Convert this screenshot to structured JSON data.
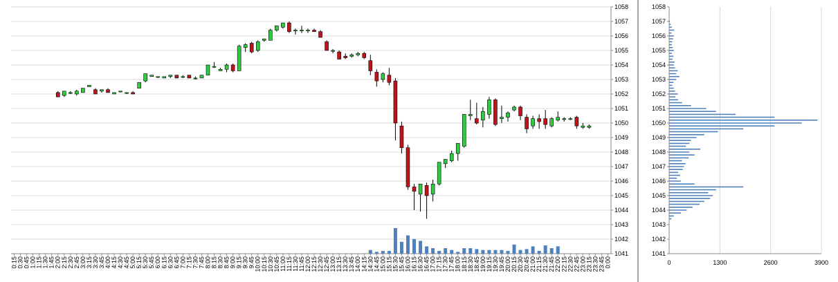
{
  "chart_data": [
    {
      "type": "candlestick",
      "name": "price",
      "ylim": [
        1041,
        1058
      ],
      "yticks": [
        1041,
        1042,
        1043,
        1044,
        1045,
        1046,
        1047,
        1048,
        1049,
        1050,
        1051,
        1052,
        1053,
        1054,
        1055,
        1056,
        1057,
        1058
      ],
      "grid": true,
      "x": [
        "0:15",
        "0:30",
        "0:45",
        "1:00",
        "1:15",
        "1:30",
        "1:45",
        "2:00",
        "2:15",
        "2:30",
        "2:45",
        "3:00",
        "3:15",
        "3:30",
        "3:45",
        "4:00",
        "4:15",
        "4:30",
        "4:45",
        "5:00",
        "5:15",
        "5:30",
        "5:45",
        "6:00",
        "6:15",
        "6:30",
        "6:45",
        "7:00",
        "7:15",
        "7:30",
        "7:45",
        "8:00",
        "8:15",
        "8:30",
        "8:45",
        "9:00",
        "9:15",
        "9:30",
        "9:45",
        "10:00",
        "10:15",
        "10:30",
        "10:45",
        "11:00",
        "11:15",
        "11:30",
        "11:45",
        "12:00",
        "12:15",
        "12:30",
        "12:45",
        "13:00",
        "13:15",
        "13:30",
        "13:45",
        "14:00",
        "14:15",
        "14:30",
        "14:45",
        "15:00",
        "15:15",
        "15:30",
        "15:45",
        "16:00",
        "16:15",
        "16:30",
        "16:45",
        "17:00",
        "17:15",
        "17:30",
        "17:45",
        "18:00",
        "18:15",
        "18:30",
        "18:45",
        "19:00",
        "19:15",
        "19:30",
        "19:45",
        "20:00",
        "20:15",
        "20:30",
        "20:45",
        "21:00",
        "21:15",
        "21:30",
        "21:45",
        "22:00",
        "22:15",
        "22:30",
        "22:45",
        "23:00",
        "23:15",
        "23:30",
        "23:45",
        "0:00"
      ],
      "candles": [
        {
          "x": "2:00",
          "o": 1052.1,
          "h": 1052.2,
          "l": 1051.8,
          "c": 1051.8
        },
        {
          "x": "2:15",
          "o": 1051.9,
          "h": 1052.1,
          "l": 1051.8,
          "c": 1052.2
        },
        {
          "x": "2:30",
          "o": 1052.1,
          "h": 1052.2,
          "l": 1052.0,
          "c": 1052.1
        },
        {
          "x": "2:45",
          "o": 1052.0,
          "h": 1052.3,
          "l": 1051.9,
          "c": 1052.2
        },
        {
          "x": "3:00",
          "o": 1052.1,
          "h": 1052.4,
          "l": 1052.1,
          "c": 1052.4
        },
        {
          "x": "3:15",
          "o": 1052.5,
          "h": 1052.6,
          "l": 1052.5,
          "c": 1052.6
        },
        {
          "x": "3:30",
          "o": 1052.3,
          "h": 1052.4,
          "l": 1052.1,
          "c": 1052.0
        },
        {
          "x": "3:45",
          "o": 1052.2,
          "h": 1052.3,
          "l": 1052.1,
          "c": 1052.3
        },
        {
          "x": "4:00",
          "o": 1052.3,
          "h": 1052.4,
          "l": 1052.2,
          "c": 1052.1
        },
        {
          "x": "4:15",
          "o": 1052.0,
          "h": 1052.1,
          "l": 1052.0,
          "c": 1052.1
        },
        {
          "x": "4:30",
          "o": 1052.2,
          "h": 1052.2,
          "l": 1052.1,
          "c": 1052.2
        },
        {
          "x": "4:45",
          "o": 1052.1,
          "h": 1052.1,
          "l": 1052.0,
          "c": 1052.1
        },
        {
          "x": "5:00",
          "o": 1052.1,
          "h": 1052.2,
          "l": 1052.0,
          "c": 1052.0
        },
        {
          "x": "5:15",
          "o": 1052.4,
          "h": 1052.8,
          "l": 1052.4,
          "c": 1052.8
        },
        {
          "x": "5:30",
          "o": 1052.9,
          "h": 1053.4,
          "l": 1052.8,
          "c": 1053.4
        },
        {
          "x": "5:45",
          "o": 1053.2,
          "h": 1053.3,
          "l": 1053.2,
          "c": 1053.3
        },
        {
          "x": "6:00",
          "o": 1053.2,
          "h": 1053.2,
          "l": 1053.1,
          "c": 1053.2
        },
        {
          "x": "6:15",
          "o": 1053.1,
          "h": 1053.2,
          "l": 1053.1,
          "c": 1053.2
        },
        {
          "x": "6:30",
          "o": 1053.2,
          "h": 1053.3,
          "l": 1053.1,
          "c": 1053.3
        },
        {
          "x": "6:45",
          "o": 1053.3,
          "h": 1053.3,
          "l": 1053.1,
          "c": 1053.1
        },
        {
          "x": "7:00",
          "o": 1053.2,
          "h": 1053.3,
          "l": 1053.1,
          "c": 1053.2
        },
        {
          "x": "7:15",
          "o": 1053.3,
          "h": 1053.3,
          "l": 1053.1,
          "c": 1053.1
        },
        {
          "x": "7:30",
          "o": 1053.1,
          "h": 1053.2,
          "l": 1053.0,
          "c": 1053.1
        },
        {
          "x": "7:45",
          "o": 1053.1,
          "h": 1053.3,
          "l": 1053.1,
          "c": 1053.3
        },
        {
          "x": "8:00",
          "o": 1053.3,
          "h": 1054.0,
          "l": 1053.3,
          "c": 1054.0
        },
        {
          "x": "8:15",
          "o": 1053.9,
          "h": 1054.2,
          "l": 1053.8,
          "c": 1053.9
        },
        {
          "x": "8:30",
          "o": 1053.6,
          "h": 1053.8,
          "l": 1053.6,
          "c": 1053.7
        },
        {
          "x": "8:45",
          "o": 1053.7,
          "h": 1054.1,
          "l": 1053.5,
          "c": 1054.0
        },
        {
          "x": "9:00",
          "o": 1054.0,
          "h": 1054.1,
          "l": 1053.5,
          "c": 1053.6
        },
        {
          "x": "9:15",
          "o": 1053.6,
          "h": 1055.4,
          "l": 1053.6,
          "c": 1055.3
        },
        {
          "x": "9:30",
          "o": 1055.2,
          "h": 1055.5,
          "l": 1054.9,
          "c": 1055.4
        },
        {
          "x": "9:45",
          "o": 1055.5,
          "h": 1055.6,
          "l": 1054.8,
          "c": 1054.9
        },
        {
          "x": "10:00",
          "o": 1055.0,
          "h": 1055.7,
          "l": 1054.9,
          "c": 1055.6
        },
        {
          "x": "10:15",
          "o": 1055.7,
          "h": 1055.8,
          "l": 1055.6,
          "c": 1055.8
        },
        {
          "x": "10:30",
          "o": 1055.7,
          "h": 1056.5,
          "l": 1055.7,
          "c": 1056.4
        },
        {
          "x": "10:45",
          "o": 1056.4,
          "h": 1056.7,
          "l": 1056.3,
          "c": 1056.7
        },
        {
          "x": "11:00",
          "o": 1056.6,
          "h": 1056.9,
          "l": 1056.5,
          "c": 1056.9
        },
        {
          "x": "11:15",
          "o": 1056.9,
          "h": 1057.0,
          "l": 1056.2,
          "c": 1056.3
        },
        {
          "x": "11:30",
          "o": 1056.4,
          "h": 1056.5,
          "l": 1056.1,
          "c": 1056.4
        },
        {
          "x": "11:45",
          "o": 1056.4,
          "h": 1056.7,
          "l": 1056.2,
          "c": 1056.4
        },
        {
          "x": "12:00",
          "o": 1056.4,
          "h": 1056.5,
          "l": 1056.2,
          "c": 1056.4
        },
        {
          "x": "12:15",
          "o": 1056.4,
          "h": 1056.5,
          "l": 1056.3,
          "c": 1056.3
        },
        {
          "x": "12:30",
          "o": 1056.3,
          "h": 1056.4,
          "l": 1055.9,
          "c": 1055.9
        },
        {
          "x": "12:45",
          "o": 1055.6,
          "h": 1055.7,
          "l": 1055.0,
          "c": 1055.0
        },
        {
          "x": "13:00",
          "o": 1055.0,
          "h": 1055.1,
          "l": 1054.8,
          "c": 1055.0
        },
        {
          "x": "13:15",
          "o": 1054.9,
          "h": 1055.0,
          "l": 1054.4,
          "c": 1054.4
        },
        {
          "x": "13:30",
          "o": 1054.6,
          "h": 1054.8,
          "l": 1054.4,
          "c": 1054.5
        },
        {
          "x": "13:45",
          "o": 1054.6,
          "h": 1054.8,
          "l": 1054.5,
          "c": 1054.7
        },
        {
          "x": "14:00",
          "o": 1054.7,
          "h": 1054.9,
          "l": 1054.6,
          "c": 1054.8
        },
        {
          "x": "14:15",
          "o": 1054.8,
          "h": 1054.9,
          "l": 1054.4,
          "c": 1054.5
        },
        {
          "x": "14:30",
          "o": 1054.3,
          "h": 1054.7,
          "l": 1053.3,
          "c": 1053.6
        },
        {
          "x": "14:45",
          "o": 1053.5,
          "h": 1053.7,
          "l": 1052.5,
          "c": 1052.9
        },
        {
          "x": "15:00",
          "o": 1053.0,
          "h": 1053.5,
          "l": 1052.8,
          "c": 1053.4
        },
        {
          "x": "15:15",
          "o": 1053.3,
          "h": 1053.8,
          "l": 1052.6,
          "c": 1052.8
        },
        {
          "x": "15:30",
          "o": 1052.9,
          "h": 1053.1,
          "l": 1048.8,
          "c": 1050.0
        },
        {
          "x": "15:45",
          "o": 1049.8,
          "h": 1050.1,
          "l": 1047.9,
          "c": 1048.3
        },
        {
          "x": "16:00",
          "o": 1048.3,
          "h": 1048.5,
          "l": 1045.4,
          "c": 1045.6
        },
        {
          "x": "16:15",
          "o": 1045.6,
          "h": 1045.8,
          "l": 1044.0,
          "c": 1045.3
        },
        {
          "x": "16:30",
          "o": 1045.1,
          "h": 1045.8,
          "l": 1043.9,
          "c": 1045.8
        },
        {
          "x": "16:45",
          "o": 1045.7,
          "h": 1045.9,
          "l": 1043.4,
          "c": 1045.0
        },
        {
          "x": "17:00",
          "o": 1045.1,
          "h": 1046.1,
          "l": 1044.6,
          "c": 1045.8
        },
        {
          "x": "17:15",
          "o": 1045.8,
          "h": 1047.3,
          "l": 1045.7,
          "c": 1047.3
        },
        {
          "x": "17:30",
          "o": 1047.2,
          "h": 1047.5,
          "l": 1046.9,
          "c": 1047.5
        },
        {
          "x": "17:45",
          "o": 1047.4,
          "h": 1048.1,
          "l": 1047.3,
          "c": 1047.9
        },
        {
          "x": "18:00",
          "o": 1047.9,
          "h": 1048.6,
          "l": 1047.4,
          "c": 1048.6
        },
        {
          "x": "18:15",
          "o": 1048.4,
          "h": 1050.6,
          "l": 1048.3,
          "c": 1050.6
        },
        {
          "x": "18:30",
          "o": 1050.5,
          "h": 1051.6,
          "l": 1050.2,
          "c": 1050.6
        },
        {
          "x": "18:45",
          "o": 1050.3,
          "h": 1051.4,
          "l": 1049.9,
          "c": 1050.0
        },
        {
          "x": "19:00",
          "o": 1050.2,
          "h": 1051.1,
          "l": 1049.7,
          "c": 1050.8
        },
        {
          "x": "19:15",
          "o": 1050.6,
          "h": 1051.8,
          "l": 1050.3,
          "c": 1051.6
        },
        {
          "x": "19:30",
          "o": 1051.6,
          "h": 1051.7,
          "l": 1049.8,
          "c": 1049.9
        },
        {
          "x": "19:45",
          "o": 1050.3,
          "h": 1051.2,
          "l": 1050.0,
          "c": 1050.4
        },
        {
          "x": "20:00",
          "o": 1050.4,
          "h": 1050.8,
          "l": 1050.1,
          "c": 1050.7
        },
        {
          "x": "20:15",
          "o": 1050.9,
          "h": 1051.2,
          "l": 1050.8,
          "c": 1051.1
        },
        {
          "x": "20:30",
          "o": 1051.1,
          "h": 1051.2,
          "l": 1050.2,
          "c": 1050.5
        },
        {
          "x": "20:45",
          "o": 1050.4,
          "h": 1050.6,
          "l": 1049.3,
          "c": 1049.6
        },
        {
          "x": "21:00",
          "o": 1049.8,
          "h": 1050.5,
          "l": 1049.6,
          "c": 1050.3
        },
        {
          "x": "21:15",
          "o": 1050.3,
          "h": 1050.6,
          "l": 1049.6,
          "c": 1050.1
        },
        {
          "x": "21:30",
          "o": 1050.3,
          "h": 1050.9,
          "l": 1049.6,
          "c": 1049.9
        },
        {
          "x": "21:45",
          "o": 1049.8,
          "h": 1050.4,
          "l": 1049.7,
          "c": 1050.3
        },
        {
          "x": "22:00",
          "o": 1050.2,
          "h": 1050.8,
          "l": 1050.1,
          "c": 1050.4
        },
        {
          "x": "22:15",
          "o": 1050.3,
          "h": 1050.4,
          "l": 1050.1,
          "c": 1050.3
        },
        {
          "x": "22:30",
          "o": 1050.3,
          "h": 1050.4,
          "l": 1050.2,
          "c": 1050.3
        },
        {
          "x": "22:45",
          "o": 1050.4,
          "h": 1050.5,
          "l": 1049.6,
          "c": 1049.8
        },
        {
          "x": "23:00",
          "o": 1049.7,
          "h": 1050.0,
          "l": 1049.6,
          "c": 1049.8
        },
        {
          "x": "23:15",
          "o": 1049.7,
          "h": 1049.9,
          "l": 1049.6,
          "c": 1049.8
        }
      ]
    },
    {
      "type": "bar",
      "name": "volume",
      "x": [
        "14:30",
        "14:45",
        "15:00",
        "15:15",
        "15:30",
        "15:45",
        "16:00",
        "16:15",
        "16:30",
        "16:45",
        "17:00",
        "17:15",
        "17:30",
        "17:45",
        "18:00",
        "18:15",
        "18:30",
        "18:45",
        "19:00",
        "19:15",
        "19:30",
        "19:45",
        "20:00",
        "20:15",
        "20:30",
        "20:45",
        "21:00",
        "21:15",
        "21:30",
        "21:45",
        "22:00"
      ],
      "values": [
        4,
        2,
        3,
        3,
        28,
        13,
        20,
        16,
        14,
        8,
        6,
        3,
        6,
        4,
        2,
        6,
        6,
        5,
        4,
        4,
        4,
        4,
        3,
        10,
        4,
        5,
        8,
        3,
        9,
        6,
        8
      ]
    },
    {
      "type": "horizontal-bar",
      "name": "volume-profile",
      "ylim": [
        1041,
        1058
      ],
      "yticks": [
        1041,
        1042,
        1043,
        1044,
        1045,
        1046,
        1047,
        1048,
        1049,
        1050,
        1051,
        1052,
        1053,
        1054,
        1055,
        1056,
        1057,
        1058
      ],
      "xlim": [
        0,
        3900
      ],
      "xticks": [
        0,
        1300,
        2600,
        3900
      ],
      "grid": true,
      "levels": [
        {
          "p": 1043.4,
          "v": 60
        },
        {
          "p": 1043.6,
          "v": 120
        },
        {
          "p": 1043.8,
          "v": 300
        },
        {
          "p": 1044.0,
          "v": 450
        },
        {
          "p": 1044.2,
          "v": 600
        },
        {
          "p": 1044.4,
          "v": 780
        },
        {
          "p": 1044.6,
          "v": 900
        },
        {
          "p": 1044.8,
          "v": 1050
        },
        {
          "p": 1045.0,
          "v": 1120
        },
        {
          "p": 1045.2,
          "v": 1000
        },
        {
          "p": 1045.4,
          "v": 1200
        },
        {
          "p": 1045.6,
          "v": 1900
        },
        {
          "p": 1045.8,
          "v": 650
        },
        {
          "p": 1046.0,
          "v": 300
        },
        {
          "p": 1046.2,
          "v": 200
        },
        {
          "p": 1046.4,
          "v": 280
        },
        {
          "p": 1046.6,
          "v": 230
        },
        {
          "p": 1046.8,
          "v": 350
        },
        {
          "p": 1047.0,
          "v": 380
        },
        {
          "p": 1047.2,
          "v": 420
        },
        {
          "p": 1047.4,
          "v": 330
        },
        {
          "p": 1047.6,
          "v": 500
        },
        {
          "p": 1047.8,
          "v": 650
        },
        {
          "p": 1048.0,
          "v": 520
        },
        {
          "p": 1048.2,
          "v": 800
        },
        {
          "p": 1048.4,
          "v": 430
        },
        {
          "p": 1048.6,
          "v": 520
        },
        {
          "p": 1048.8,
          "v": 560
        },
        {
          "p": 1049.0,
          "v": 700
        },
        {
          "p": 1049.2,
          "v": 900
        },
        {
          "p": 1049.4,
          "v": 1250
        },
        {
          "p": 1049.6,
          "v": 1900
        },
        {
          "p": 1049.8,
          "v": 2700
        },
        {
          "p": 1050.0,
          "v": 3400
        },
        {
          "p": 1050.2,
          "v": 3800
        },
        {
          "p": 1050.4,
          "v": 2700
        },
        {
          "p": 1050.6,
          "v": 1700
        },
        {
          "p": 1050.8,
          "v": 1200
        },
        {
          "p": 1051.0,
          "v": 950
        },
        {
          "p": 1051.2,
          "v": 560
        },
        {
          "p": 1051.4,
          "v": 330
        },
        {
          "p": 1051.6,
          "v": 230
        },
        {
          "p": 1051.8,
          "v": 160
        },
        {
          "p": 1052.0,
          "v": 220
        },
        {
          "p": 1052.2,
          "v": 150
        },
        {
          "p": 1052.4,
          "v": 120
        },
        {
          "p": 1052.6,
          "v": 80
        },
        {
          "p": 1052.8,
          "v": 110
        },
        {
          "p": 1053.0,
          "v": 180
        },
        {
          "p": 1053.2,
          "v": 260
        },
        {
          "p": 1053.4,
          "v": 180
        },
        {
          "p": 1053.6,
          "v": 220
        },
        {
          "p": 1053.8,
          "v": 150
        },
        {
          "p": 1054.0,
          "v": 120
        },
        {
          "p": 1054.2,
          "v": 140
        },
        {
          "p": 1054.4,
          "v": 90
        },
        {
          "p": 1054.6,
          "v": 110
        },
        {
          "p": 1054.8,
          "v": 70
        },
        {
          "p": 1055.0,
          "v": 120
        },
        {
          "p": 1055.2,
          "v": 90
        },
        {
          "p": 1055.4,
          "v": 70
        },
        {
          "p": 1055.6,
          "v": 80
        },
        {
          "p": 1055.8,
          "v": 100
        },
        {
          "p": 1056.0,
          "v": 120
        },
        {
          "p": 1056.2,
          "v": 60
        },
        {
          "p": 1056.4,
          "v": 130
        },
        {
          "p": 1056.6,
          "v": 70
        },
        {
          "p": 1056.8,
          "v": 40
        },
        {
          "p": 1057.0,
          "v": 20
        }
      ]
    }
  ],
  "colors": {
    "up": "#2ecc40",
    "down": "#c0141c",
    "volume": "#4f81bd",
    "grid": "#d8d8d8"
  }
}
